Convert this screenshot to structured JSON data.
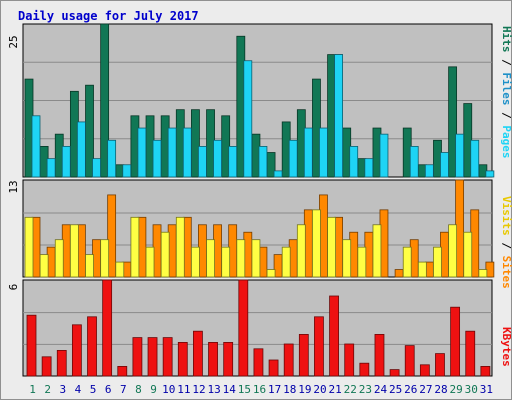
{
  "title": "Daily usage for July 2017",
  "colors": {
    "panel_bg": "#c0c0c0",
    "frame_bg": "#ececec",
    "title": "#0000cc",
    "hits": "#117755",
    "files": "#1ed4f5",
    "sites": "#ffff44",
    "visits": "#ff8800",
    "kbytes": "#ee1111",
    "weekend_label": "#117755",
    "day_label": "#0000aa"
  },
  "axis_labels": {
    "top": {
      "max": "25",
      "series": [
        "Hits",
        "Files",
        "Pages"
      ],
      "separator": " / "
    },
    "middle": {
      "max": "13",
      "series": [
        "Visits",
        "Sites"
      ],
      "separator": " / "
    },
    "bottom": {
      "max": "6",
      "series": [
        "KBytes"
      ]
    }
  },
  "chart_data": [
    {
      "type": "bar",
      "name": "hits-files-pages",
      "categories": [
        "1",
        "2",
        "3",
        "4",
        "5",
        "6",
        "7",
        "8",
        "9",
        "10",
        "11",
        "12",
        "13",
        "14",
        "15",
        "16",
        "17",
        "18",
        "19",
        "20",
        "21",
        "22",
        "23",
        "24",
        "25",
        "26",
        "27",
        "28",
        "29",
        "30",
        "31"
      ],
      "weekend_days": [
        "1",
        "2",
        "8",
        "9",
        "15",
        "16",
        "22",
        "23",
        "29",
        "30"
      ],
      "ylim": [
        0,
        25
      ],
      "series": [
        {
          "name": "Hits",
          "values": [
            16,
            5,
            7,
            14,
            15,
            25,
            2,
            10,
            10,
            10,
            11,
            11,
            11,
            10,
            23,
            7,
            4,
            9,
            11,
            16,
            20,
            8,
            3,
            8,
            0,
            8,
            2,
            6,
            18,
            12,
            2
          ]
        },
        {
          "name": "Files",
          "values": [
            10,
            3,
            5,
            9,
            3,
            6,
            2,
            8,
            6,
            8,
            8,
            5,
            6,
            5,
            19,
            5,
            1,
            6,
            8,
            8,
            20,
            5,
            3,
            7,
            0,
            5,
            2,
            4,
            7,
            6,
            1
          ]
        },
        {
          "name": "Pages",
          "values": [
            0,
            0,
            0,
            0,
            0,
            0,
            0,
            0,
            0,
            0,
            0,
            0,
            0,
            0,
            0,
            0,
            0,
            0,
            0,
            0,
            20,
            0,
            0,
            0,
            0,
            0,
            0,
            0,
            0,
            0,
            0
          ]
        }
      ]
    },
    {
      "type": "bar",
      "name": "visits-sites",
      "categories": [
        "1",
        "2",
        "3",
        "4",
        "5",
        "6",
        "7",
        "8",
        "9",
        "10",
        "11",
        "12",
        "13",
        "14",
        "15",
        "16",
        "17",
        "18",
        "19",
        "20",
        "21",
        "22",
        "23",
        "24",
        "25",
        "26",
        "27",
        "28",
        "29",
        "30",
        "31"
      ],
      "ylim": [
        0,
        13
      ],
      "series": [
        {
          "name": "Visits",
          "values": [
            8,
            4,
            7,
            7,
            5,
            11,
            2,
            8,
            7,
            7,
            8,
            7,
            7,
            7,
            6,
            4,
            3,
            5,
            9,
            11,
            8,
            6,
            6,
            9,
            1,
            5,
            2,
            6,
            13,
            9,
            2
          ]
        },
        {
          "name": "Sites",
          "values": [
            8,
            3,
            5,
            7,
            3,
            5,
            2,
            8,
            4,
            6,
            8,
            4,
            5,
            4,
            5,
            5,
            1,
            4,
            7,
            9,
            8,
            5,
            4,
            7,
            0,
            4,
            2,
            4,
            7,
            6,
            1
          ]
        }
      ]
    },
    {
      "type": "bar",
      "name": "kbytes",
      "categories": [
        "1",
        "2",
        "3",
        "4",
        "5",
        "6",
        "7",
        "8",
        "9",
        "10",
        "11",
        "12",
        "13",
        "14",
        "15",
        "16",
        "17",
        "18",
        "19",
        "20",
        "21",
        "22",
        "23",
        "24",
        "25",
        "26",
        "27",
        "28",
        "29",
        "30",
        "31"
      ],
      "ylim": [
        0,
        6
      ],
      "series": [
        {
          "name": "KBytes",
          "values": [
            3.8,
            1.2,
            1.6,
            3.2,
            3.7,
            6,
            0.6,
            2.4,
            2.4,
            2.4,
            2.1,
            2.8,
            2.1,
            2.1,
            6,
            1.7,
            1,
            2,
            2.6,
            3.7,
            5,
            2,
            0.8,
            2.6,
            0.4,
            1.9,
            0.7,
            1.4,
            4.3,
            2.8,
            0.6
          ]
        }
      ]
    }
  ]
}
